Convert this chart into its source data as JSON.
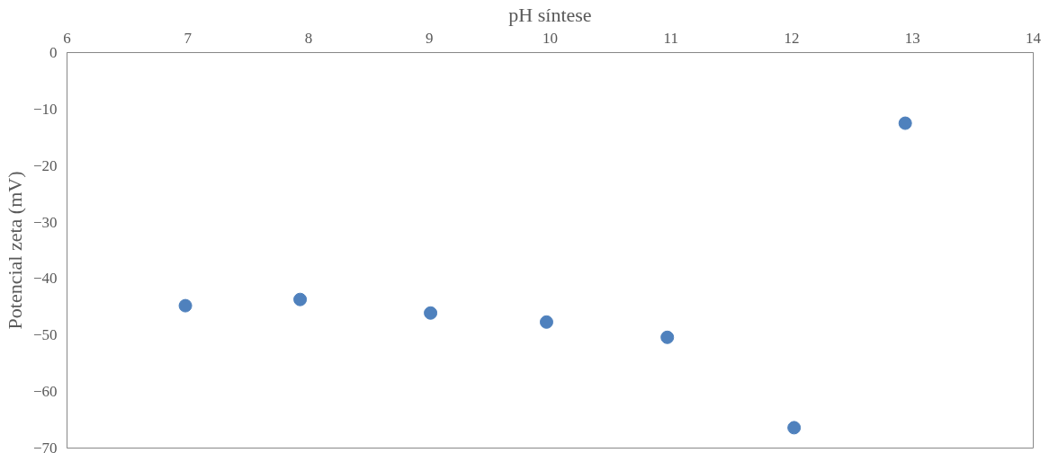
{
  "chart_data": {
    "type": "scatter",
    "xlabel": "pH síntese",
    "ylabel": "Potencial zeta (mV)",
    "x": [
      6.98,
      7.93,
      9.01,
      9.97,
      10.97,
      12.02,
      12.94
    ],
    "series": [
      {
        "color": "#4f81bd",
        "values": [
          -44.8,
          -43.7,
          -46.1,
          -47.7,
          -50.4,
          -66.4,
          -12.5
        ]
      }
    ],
    "xlim": [
      6,
      14
    ],
    "xticks": [
      6,
      7,
      8,
      9,
      10,
      11,
      12,
      13,
      14
    ],
    "ylim": [
      -70,
      0
    ],
    "yticks": [
      -70,
      -60,
      -50,
      -40,
      -30,
      -20,
      -10,
      0
    ],
    "grid": false,
    "marker": "circle"
  }
}
